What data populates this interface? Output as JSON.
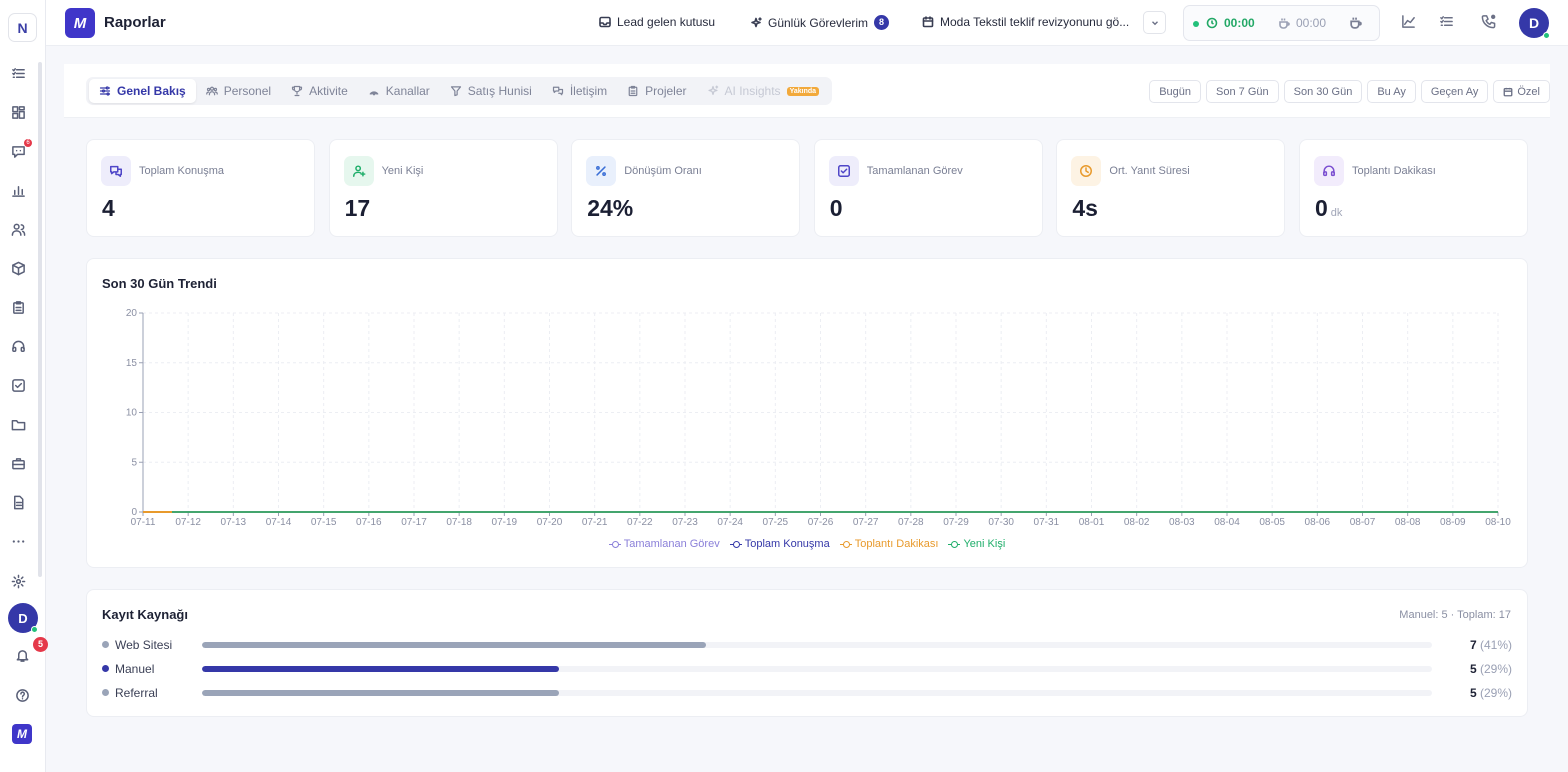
{
  "workspace_initial": "N",
  "rail": {
    "chat_badge": "6",
    "avatar_initial": "D",
    "notification_count": "5"
  },
  "header": {
    "title": "Raporlar",
    "lead_inbox": "Lead gelen kutusu",
    "daily_tasks": "Günlük Görevlerim",
    "daily_tasks_count": "8",
    "event": "Moda Tekstil teklif revizyonunu gö...",
    "timer_work": "00:00",
    "timer_break": "00:00",
    "avatar_initial": "D"
  },
  "tabs": [
    {
      "label": "Genel Bakış",
      "icon": "sliders-icon",
      "state": "active"
    },
    {
      "label": "Personel",
      "icon": "team-icon",
      "state": "normal"
    },
    {
      "label": "Aktivite",
      "icon": "trophy-icon",
      "state": "normal"
    },
    {
      "label": "Kanallar",
      "icon": "broadcast-icon",
      "state": "normal"
    },
    {
      "label": "Satış Hunisi",
      "icon": "funnel-icon",
      "state": "normal"
    },
    {
      "label": "İletişim",
      "icon": "chat-icon",
      "state": "normal"
    },
    {
      "label": "Projeler",
      "icon": "clipboard-icon",
      "state": "normal"
    },
    {
      "label": "AI Insights",
      "icon": "sparkle-icon",
      "state": "disabled",
      "badge": "Yakında"
    }
  ],
  "ranges": [
    "Bugün",
    "Son 7 Gün",
    "Son 30 Gün",
    "Bu Ay",
    "Geçen Ay",
    "Özel"
  ],
  "kpis": [
    {
      "label": "Toplam Konuşma",
      "value": "4",
      "unit": "",
      "icon": "chat-bubbles-icon",
      "color": "#4f46c8",
      "bg": "#eeedfb"
    },
    {
      "label": "Yeni Kişi",
      "value": "17",
      "unit": "",
      "icon": "user-plus-icon",
      "color": "#1fae6a",
      "bg": "#e6f7ee"
    },
    {
      "label": "Dönüşüm Oranı",
      "value": "24%",
      "unit": "",
      "icon": "percent-icon",
      "color": "#3b6fd6",
      "bg": "#e9f0fc"
    },
    {
      "label": "Tamamlanan Görev",
      "value": "0",
      "unit": "",
      "icon": "check-square-icon",
      "color": "#4f46c8",
      "bg": "#eeedfb"
    },
    {
      "label": "Ort. Yanıt Süresi",
      "value": "4s",
      "unit": "",
      "icon": "clock-icon",
      "color": "#e89a2c",
      "bg": "#fdf3e4"
    },
    {
      "label": "Toplantı Dakikası",
      "value": "0",
      "unit": "dk",
      "icon": "headset-icon",
      "color": "#7b4fd1",
      "bg": "#f2ecfc"
    }
  ],
  "trend": {
    "title": "Son 30 Gün Trendi"
  },
  "chart_data": {
    "type": "line",
    "title": "Son 30 Gün Trendi",
    "x": [
      "07-11",
      "07-12",
      "07-13",
      "07-14",
      "07-15",
      "07-16",
      "07-17",
      "07-18",
      "07-19",
      "07-20",
      "07-21",
      "07-22",
      "07-23",
      "07-24",
      "07-25",
      "07-26",
      "07-27",
      "07-28",
      "07-29",
      "07-30",
      "07-31",
      "08-01",
      "08-02",
      "08-03",
      "08-04",
      "08-05",
      "08-06",
      "08-07",
      "08-08",
      "08-09",
      "08-10"
    ],
    "yticks": [
      0,
      5,
      10,
      15,
      20
    ],
    "ylim": [
      0,
      20
    ],
    "grid": true,
    "legend_position": "bottom",
    "series": [
      {
        "name": "Tamamlanan Görev",
        "color": "#8b80d9",
        "values": [
          0,
          0,
          0,
          0,
          0,
          0,
          0,
          0,
          0,
          0,
          0,
          0,
          0,
          0,
          0,
          0,
          0,
          0,
          0,
          0,
          0,
          0,
          0,
          0,
          0,
          0,
          0,
          0,
          0,
          0,
          0
        ]
      },
      {
        "name": "Toplam Konuşma",
        "color": "#3538a8",
        "values": [
          0,
          0,
          0,
          0,
          0,
          0,
          0,
          0,
          0,
          0,
          0,
          0,
          0,
          0,
          0,
          0,
          0,
          0,
          0,
          0,
          0,
          0,
          0,
          0,
          0,
          0,
          0,
          0,
          0,
          0,
          0
        ]
      },
      {
        "name": "Toplantı Dakikası",
        "color": "#e89a2c",
        "values": [
          0,
          0,
          0,
          0,
          0,
          0,
          0,
          0,
          0,
          0,
          0,
          0,
          0,
          0,
          0,
          0,
          0,
          0,
          0,
          0,
          0,
          0,
          0,
          0,
          0,
          0,
          0,
          0,
          0,
          0,
          0
        ]
      },
      {
        "name": "Yeni Kişi",
        "color": "#1fae6a",
        "values": [
          0,
          0,
          0,
          0,
          0,
          0,
          0,
          0,
          0,
          0,
          0,
          0,
          0,
          0,
          0,
          0,
          0,
          0,
          0,
          0,
          0,
          0,
          0,
          0,
          0,
          0,
          0,
          0,
          0,
          0,
          0
        ]
      }
    ]
  },
  "sources": {
    "title": "Kayıt Kaynağı",
    "summary": "Manuel: 5 · Toplam: 17",
    "rows": [
      {
        "name": "Web Sitesi",
        "count": "7",
        "pct": "(41%)",
        "fraction": 0.41,
        "color": "#9aa4b8"
      },
      {
        "name": "Manuel",
        "count": "5",
        "pct": "(29%)",
        "fraction": 0.29,
        "color": "#3538a8"
      },
      {
        "name": "Referral",
        "count": "5",
        "pct": "(29%)",
        "fraction": 0.29,
        "color": "#9aa4b8"
      }
    ]
  }
}
